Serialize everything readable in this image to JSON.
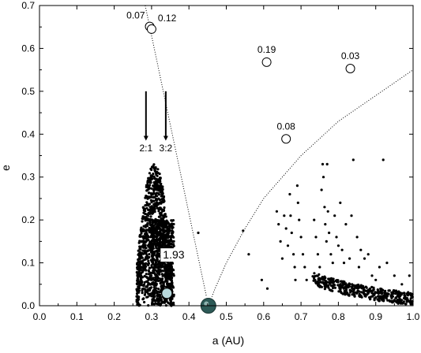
{
  "chart_data": {
    "type": "scatter",
    "xlabel": "a (AU)",
    "ylabel": "e",
    "xlim": [
      0.0,
      1.0
    ],
    "ylim": [
      0.0,
      0.7
    ],
    "x_ticks": [
      "0.0",
      "0.1",
      "0.2",
      "0.3",
      "0.4",
      "0.5",
      "0.6",
      "0.7",
      "0.8",
      "0.9",
      "1.0"
    ],
    "y_ticks": [
      "0.0",
      "0.1",
      "0.2",
      "0.3",
      "0.4",
      "0.5",
      "0.6",
      "0.7"
    ],
    "grid": false,
    "labeled_bodies": [
      {
        "label": "0.07",
        "x": 0.295,
        "e": 0.651
      },
      {
        "label": "0.12",
        "x": 0.3,
        "e": 0.645
      },
      {
        "label": "0.19",
        "x": 0.608,
        "e": 0.568
      },
      {
        "label": "0.03",
        "x": 0.832,
        "e": 0.553
      },
      {
        "label": "0.08",
        "x": 0.66,
        "e": 0.389
      }
    ],
    "highlighted_body": {
      "label": "1.93",
      "x": 0.341,
      "e": 0.029
    },
    "central_body": {
      "x": 0.452,
      "e": 0.0
    },
    "resonances": [
      {
        "label": "2:1",
        "x": 0.285
      },
      {
        "label": "3:2",
        "x": 0.338
      }
    ],
    "left_curve": [
      [
        0.283,
        0.7
      ],
      [
        0.452,
        0.0
      ]
    ],
    "right_curve": [
      [
        0.452,
        0.0
      ],
      [
        0.47,
        0.04
      ],
      [
        0.5,
        0.1
      ],
      [
        0.55,
        0.18
      ],
      [
        0.6,
        0.25
      ],
      [
        0.65,
        0.3
      ],
      [
        0.7,
        0.35
      ],
      [
        0.75,
        0.39
      ],
      [
        0.8,
        0.43
      ],
      [
        0.85,
        0.46
      ],
      [
        0.9,
        0.49
      ],
      [
        0.95,
        0.52
      ],
      [
        1.0,
        0.55
      ]
    ],
    "scatter_clusters": [
      {
        "n": 1100,
        "x_min": 0.26,
        "x_max": 0.355,
        "e_max_fn": "peak",
        "e_peak": 0.33,
        "seed": 11
      },
      {
        "n": 450,
        "x_min": 0.3,
        "x_max": 0.36,
        "e_max_fn": "flat",
        "e_peak": 0.2,
        "seed": 23
      }
    ],
    "sparse_points": [
      [
        0.425,
        0.17
      ],
      [
        0.545,
        0.175
      ],
      [
        0.56,
        0.12
      ],
      [
        0.595,
        0.06
      ],
      [
        0.61,
        0.04
      ],
      [
        0.635,
        0.22
      ],
      [
        0.64,
        0.19
      ],
      [
        0.645,
        0.15
      ],
      [
        0.65,
        0.11
      ],
      [
        0.655,
        0.21
      ],
      [
        0.66,
        0.18
      ],
      [
        0.665,
        0.14
      ],
      [
        0.67,
        0.26
      ],
      [
        0.672,
        0.21
      ],
      [
        0.675,
        0.17
      ],
      [
        0.68,
        0.12
      ],
      [
        0.683,
        0.09
      ],
      [
        0.685,
        0.06
      ],
      [
        0.69,
        0.28
      ],
      [
        0.692,
        0.24
      ],
      [
        0.695,
        0.2
      ],
      [
        0.7,
        0.16
      ],
      [
        0.705,
        0.12
      ],
      [
        0.71,
        0.09
      ],
      [
        0.715,
        0.06
      ],
      [
        0.735,
        0.2
      ],
      [
        0.74,
        0.16
      ],
      [
        0.745,
        0.12
      ],
      [
        0.75,
        0.09
      ],
      [
        0.755,
        0.27
      ],
      [
        0.758,
        0.33
      ],
      [
        0.76,
        0.3
      ],
      [
        0.763,
        0.23
      ],
      [
        0.765,
        0.19
      ],
      [
        0.768,
        0.15
      ],
      [
        0.77,
        0.33
      ],
      [
        0.772,
        0.22
      ],
      [
        0.775,
        0.17
      ],
      [
        0.78,
        0.12
      ],
      [
        0.785,
        0.1
      ],
      [
        0.79,
        0.21
      ],
      [
        0.795,
        0.16
      ],
      [
        0.8,
        0.14
      ],
      [
        0.805,
        0.24
      ],
      [
        0.81,
        0.13
      ],
      [
        0.815,
        0.1
      ],
      [
        0.82,
        0.19
      ],
      [
        0.83,
        0.11
      ],
      [
        0.835,
        0.21
      ],
      [
        0.84,
        0.34
      ],
      [
        0.85,
        0.16
      ],
      [
        0.855,
        0.09
      ],
      [
        0.86,
        0.13
      ],
      [
        0.87,
        0.11
      ],
      [
        0.88,
        0.12
      ],
      [
        0.89,
        0.07
      ],
      [
        0.9,
        0.06
      ],
      [
        0.91,
        0.09
      ],
      [
        0.92,
        0.34
      ],
      [
        0.93,
        0.1
      ],
      [
        0.95,
        0.07
      ],
      [
        0.97,
        0.05
      ],
      [
        0.99,
        0.07
      ]
    ],
    "tail_band": {
      "n": 420,
      "x_min": 0.73,
      "x_max": 1.0,
      "e_start": 0.075,
      "e_end": 0.015,
      "seed": 37
    }
  }
}
